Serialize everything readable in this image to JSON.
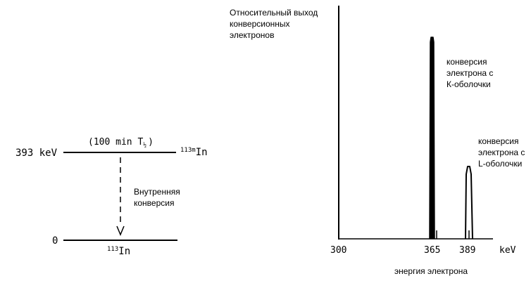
{
  "level_diagram": {
    "upper_level": {
      "energy_label": "393 keV",
      "half_life_prefix": "(100 min T",
      "half_life_sub": "½",
      "half_life_suffix": ")",
      "isotope_mass": "113m",
      "isotope_symbol": "In"
    },
    "lower_level": {
      "energy_label": "0",
      "isotope_mass": "113",
      "isotope_symbol": "In"
    },
    "transition_label_line1": "Внутренняя",
    "transition_label_line2": "конверсия"
  },
  "spectrum": {
    "ylabel_line1": "Относительный выход",
    "ylabel_line2": "конверсионных",
    "ylabel_line3": "электронов",
    "xlabel": "энергия электрона",
    "x_unit": "keV",
    "x_ticks": [
      "300",
      "365",
      "389"
    ]
  },
  "peaks": {
    "k": {
      "line1": "конверсия",
      "line2": "электрона с",
      "line3": "К-оболочки"
    },
    "l": {
      "line1": "конверсия",
      "line2": "электрона с",
      "line3": "L-оболочки"
    }
  },
  "chart_data": {
    "type": "line",
    "x_unit": "keV",
    "x_ticks": [
      300,
      365,
      389
    ],
    "series": [
      {
        "x": [
          300,
          363,
          364,
          365,
          366,
          367,
          387,
          388,
          389,
          390,
          391,
          420
        ],
        "y": [
          0,
          0,
          0.95,
          1.0,
          0.95,
          0,
          0,
          0.35,
          0.38,
          0.35,
          0,
          0
        ]
      }
    ]
  }
}
